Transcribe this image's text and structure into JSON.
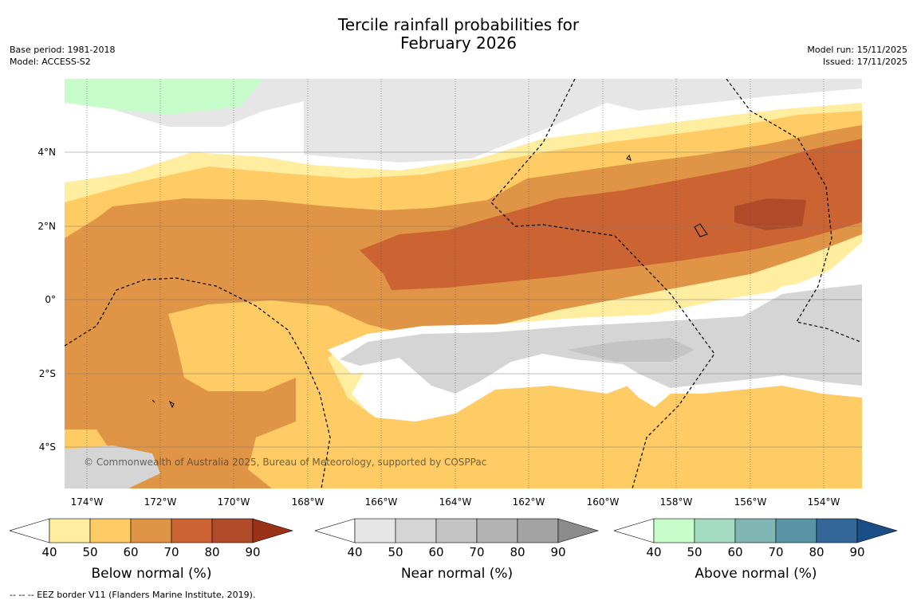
{
  "title": {
    "line1": "Tercile rainfall probabilities for",
    "line2": "February 2026"
  },
  "meta": {
    "base_period": "Base period: 1981-2018",
    "model": "Model: ACCESS-S2",
    "model_run": "Model run: 15/11/2025",
    "issued": "Issued: 17/11/2025"
  },
  "copyright": "© Commonwealth of Australia 2025, Bureau of Meteorology, supported by COSPPac",
  "axes": {
    "latitude_labels": [
      "4°N",
      "2°N",
      "0°",
      "2°S",
      "4°S"
    ],
    "longitude_labels": [
      "174°W",
      "172°W",
      "170°W",
      "168°W",
      "166°W",
      "164°W",
      "162°W",
      "160°W",
      "158°W",
      "156°W",
      "154°W"
    ]
  },
  "legends": {
    "below": {
      "title": "Below normal (%)",
      "ticks": [
        "40",
        "50",
        "60",
        "70",
        "80",
        "90"
      ],
      "colors": [
        "#ffffff",
        "#ffeda0",
        "#fecb65",
        "#e09445",
        "#cb6332",
        "#b04a28",
        "#993217"
      ]
    },
    "near": {
      "title": "Near normal (%)",
      "ticks": [
        "40",
        "50",
        "60",
        "70",
        "80",
        "90"
      ],
      "colors": [
        "#ffffff",
        "#e6e6e6",
        "#d5d5d5",
        "#c4c4c4",
        "#b3b3b3",
        "#a3a3a3",
        "#8c8c8c"
      ]
    },
    "above": {
      "title": "Above normal (%)",
      "ticks": [
        "40",
        "50",
        "60",
        "70",
        "80",
        "90"
      ],
      "colors": [
        "#ffffff",
        "#c7fdcb",
        "#a3dbc0",
        "#7fb6b3",
        "#5a93a3",
        "#336699",
        "#194f86"
      ]
    }
  },
  "footnote": "--  --  -- EEZ border V11 (Flanders Marine Institute, 2019)."
}
